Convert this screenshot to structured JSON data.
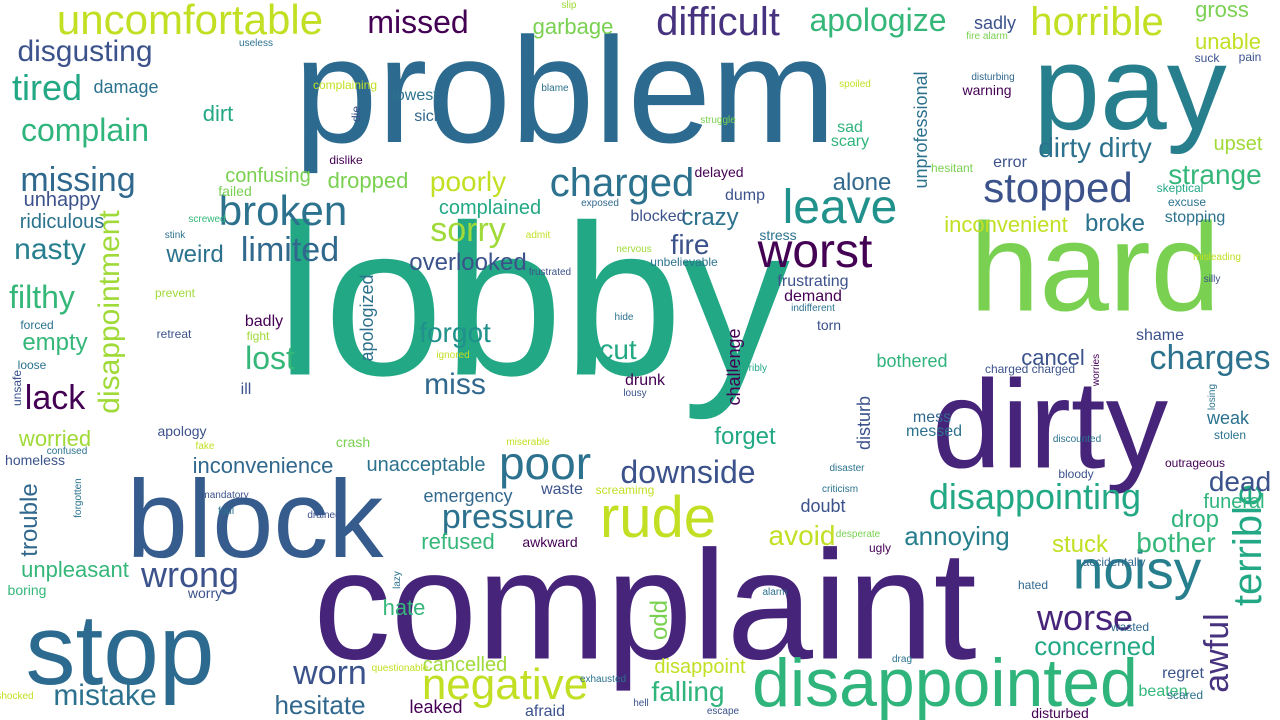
{
  "palette": [
    "#440154",
    "#46327e",
    "#365c8d",
    "#277f8e",
    "#1fa187",
    "#4ac16d",
    "#a0da39",
    "#c3e02a"
  ],
  "words": [
    {
      "text": "lobby",
      "color": "#22a884"
    },
    {
      "text": "problem",
      "color": "#2c6b8f"
    },
    {
      "text": "complaint",
      "color": "#46247a"
    },
    {
      "text": "hard",
      "color": "#7ad151"
    },
    {
      "text": "dirty",
      "color": "#46247a"
    },
    {
      "text": "pay",
      "color": "#277f8e"
    },
    {
      "text": "block",
      "color": "#365c8d"
    },
    {
      "text": "stop",
      "color": "#2c6b8f"
    },
    {
      "text": "disappointed",
      "color": "#2fb47c"
    },
    {
      "text": "noisy",
      "color": "#277f8e"
    },
    {
      "text": "uncomfortable",
      "color": "#c2df23"
    },
    {
      "text": "rude",
      "color": "#c2df23"
    },
    {
      "text": "worst",
      "color": "#440154"
    },
    {
      "text": "leave",
      "color": "#21918c"
    },
    {
      "text": "horrible",
      "color": "#c2df23"
    },
    {
      "text": "poor",
      "color": "#2c728e"
    },
    {
      "text": "broken",
      "color": "#2c728e"
    },
    {
      "text": "stopped",
      "color": "#3b528b"
    },
    {
      "text": "negative",
      "color": "#c2df23"
    },
    {
      "text": "charged",
      "color": "#2c728e"
    },
    {
      "text": "disappointing",
      "color": "#22a884"
    },
    {
      "text": "terrible",
      "color": "#22a884"
    },
    {
      "text": "difficult",
      "color": "#46327e"
    },
    {
      "text": "missed",
      "color": "#440154"
    },
    {
      "text": "apologize",
      "color": "#35b779"
    },
    {
      "text": "complain",
      "color": "#2fb47c"
    },
    {
      "text": "disgusting",
      "color": "#3b528b"
    },
    {
      "text": "tired",
      "color": "#22a884"
    },
    {
      "text": "missing",
      "color": "#31688e"
    },
    {
      "text": "limited",
      "color": "#31688e"
    },
    {
      "text": "sorry",
      "color": "#a0da39"
    },
    {
      "text": "charges",
      "color": "#2c728e"
    },
    {
      "text": "wrong",
      "color": "#3b528b"
    },
    {
      "text": "pressure",
      "color": "#2c728e"
    },
    {
      "text": "downside",
      "color": "#3b528b"
    },
    {
      "text": "worn",
      "color": "#3b528b"
    },
    {
      "text": "mistake",
      "color": "#2c728e"
    },
    {
      "text": "worse",
      "color": "#46247a"
    },
    {
      "text": "awful",
      "color": "#46327e"
    },
    {
      "text": "lost",
      "color": "#35b779"
    },
    {
      "text": "lack",
      "color": "#440154"
    },
    {
      "text": "filthy",
      "color": "#35b779"
    },
    {
      "text": "nasty",
      "color": "#277f8e"
    },
    {
      "text": "disappointment",
      "color": "#a0da39"
    },
    {
      "text": "dirty dirty",
      "color": "#2c728e"
    },
    {
      "text": "strange",
      "color": "#35b779"
    },
    {
      "text": "dead",
      "color": "#3b528b"
    },
    {
      "text": "miss",
      "color": "#31688e"
    },
    {
      "text": "forgot",
      "color": "#21918c"
    },
    {
      "text": "cut",
      "color": "#22a884"
    },
    {
      "text": "fire",
      "color": "#3b528b"
    },
    {
      "text": "poorly",
      "color": "#c2df23"
    },
    {
      "text": "crazy",
      "color": "#2c728e"
    },
    {
      "text": "alone",
      "color": "#31688e"
    },
    {
      "text": "bother",
      "color": "#35b779"
    },
    {
      "text": "stuck",
      "color": "#c2df23"
    },
    {
      "text": "drop",
      "color": "#2fb47c"
    },
    {
      "text": "falling",
      "color": "#2fb47c"
    },
    {
      "text": "hesitate",
      "color": "#31688e"
    },
    {
      "text": "concerned",
      "color": "#22a884"
    },
    {
      "text": "annoying",
      "color": "#277f8e"
    },
    {
      "text": "avoid",
      "color": "#c2df23"
    },
    {
      "text": "unpleasant",
      "color": "#35b779"
    },
    {
      "text": "trouble",
      "color": "#31688e"
    },
    {
      "text": "overlooked",
      "color": "#3b528b"
    },
    {
      "text": "weird",
      "color": "#2c728e"
    },
    {
      "text": "empty",
      "color": "#35b779"
    },
    {
      "text": "unable",
      "color": "#c2df23"
    },
    {
      "text": "gross",
      "color": "#7ad151"
    },
    {
      "text": "upset",
      "color": "#a0da39"
    },
    {
      "text": "broke",
      "color": "#2c728e"
    },
    {
      "text": "inconvenient",
      "color": "#c2df23"
    },
    {
      "text": "inconvenience",
      "color": "#31688e"
    },
    {
      "text": "unacceptable",
      "color": "#2c728e"
    },
    {
      "text": "refused",
      "color": "#35b779"
    },
    {
      "text": "forget",
      "color": "#22a884"
    },
    {
      "text": "cancel",
      "color": "#3b528b"
    },
    {
      "text": "garbage",
      "color": "#7ad151"
    },
    {
      "text": "dropped",
      "color": "#7ad151"
    },
    {
      "text": "confusing",
      "color": "#7ad151"
    },
    {
      "text": "complained",
      "color": "#22a884"
    },
    {
      "text": "ridiculous",
      "color": "#2c728e"
    },
    {
      "text": "unhappy",
      "color": "#3b528b"
    },
    {
      "text": "damage",
      "color": "#2c728e"
    },
    {
      "text": "dirt",
      "color": "#22a884"
    },
    {
      "text": "sick",
      "color": "#31688e"
    },
    {
      "text": "lowest",
      "color": "#2c728e"
    },
    {
      "text": "sad",
      "color": "#2fb47c"
    },
    {
      "text": "scary",
      "color": "#2fb47c"
    },
    {
      "text": "sadly",
      "color": "#3b528b"
    },
    {
      "text": "hate",
      "color": "#35b779"
    },
    {
      "text": "odd",
      "color": "#7ad151"
    },
    {
      "text": "cancelled",
      "color": "#a0da39"
    },
    {
      "text": "disappoint",
      "color": "#c2df23"
    },
    {
      "text": "waste",
      "color": "#3b528b"
    },
    {
      "text": "emergency",
      "color": "#31688e"
    },
    {
      "text": "doubt",
      "color": "#3b528b"
    },
    {
      "text": "drunk",
      "color": "#440154"
    },
    {
      "text": "bothered",
      "color": "#2fb47c"
    },
    {
      "text": "weak",
      "color": "#2c728e"
    },
    {
      "text": "funeral",
      "color": "#2fb47c"
    },
    {
      "text": "regret",
      "color": "#3b528b"
    },
    {
      "text": "beaten",
      "color": "#35b779"
    },
    {
      "text": "leaked",
      "color": "#440154"
    },
    {
      "text": "afraid",
      "color": "#3b528b"
    },
    {
      "text": "worried",
      "color": "#a0da39"
    },
    {
      "text": "shame",
      "color": "#3b528b"
    },
    {
      "text": "mess",
      "color": "#31688e"
    },
    {
      "text": "messed",
      "color": "#2c728e"
    },
    {
      "text": "badly",
      "color": "#440154"
    },
    {
      "text": "ill",
      "color": "#3b528b"
    },
    {
      "text": "apologized",
      "color": "#2c728e"
    },
    {
      "text": "unprofessional",
      "color": "#2c728e"
    },
    {
      "text": "challenge",
      "color": "#440154"
    },
    {
      "text": "disturb",
      "color": "#3b528b"
    },
    {
      "text": "dump",
      "color": "#3b528b"
    },
    {
      "text": "blocked",
      "color": "#3b528b"
    },
    {
      "text": "stopping",
      "color": "#2c728e"
    },
    {
      "text": "error",
      "color": "#3b528b"
    },
    {
      "text": "frustrating",
      "color": "#3b528b"
    },
    {
      "text": "demand",
      "color": "#440154"
    },
    {
      "text": "torn",
      "color": "#3b528b"
    },
    {
      "text": "stress",
      "color": "#2c728e"
    },
    {
      "text": "delayed",
      "color": "#440154"
    },
    {
      "text": "crash",
      "color": "#7ad151"
    },
    {
      "text": "apology",
      "color": "#3b528b"
    },
    {
      "text": "homeless",
      "color": "#3b528b"
    },
    {
      "text": "boring",
      "color": "#35b779"
    },
    {
      "text": "worry",
      "color": "#3b528b"
    },
    {
      "text": "awkward",
      "color": "#440154"
    },
    {
      "text": "ugly",
      "color": "#440154"
    },
    {
      "text": "accidentally",
      "color": "#31688e"
    },
    {
      "text": "hated",
      "color": "#31688e"
    },
    {
      "text": "wasted",
      "color": "#31688e"
    },
    {
      "text": "scared",
      "color": "#2c728e"
    },
    {
      "text": "stolen",
      "color": "#2c728e"
    },
    {
      "text": "outrageous",
      "color": "#440154"
    },
    {
      "text": "bloody",
      "color": "#3b528b"
    },
    {
      "text": "unsafe",
      "color": "#3b528b"
    },
    {
      "text": "loose",
      "color": "#2c728e"
    },
    {
      "text": "forced",
      "color": "#2c728e"
    },
    {
      "text": "failed",
      "color": "#7ad151"
    },
    {
      "text": "suck",
      "color": "#3b528b"
    },
    {
      "text": "pain",
      "color": "#3b528b"
    },
    {
      "text": "warning",
      "color": "#440154"
    },
    {
      "text": "hesitant",
      "color": "#7ad151"
    },
    {
      "text": "excuse",
      "color": "#2c728e"
    },
    {
      "text": "skeptical",
      "color": "#22a884"
    },
    {
      "text": "disturbed",
      "color": "#440154"
    },
    {
      "text": "charged charged",
      "color": "#3b528b"
    },
    {
      "text": "unbelievable",
      "color": "#2c728e"
    },
    {
      "text": "screamimg",
      "color": "#c2df23"
    },
    {
      "text": "complaining",
      "color": "#c2df23"
    },
    {
      "text": "die",
      "color": "#3b528b"
    },
    {
      "text": "blame",
      "color": "#2c728e"
    },
    {
      "text": "useless",
      "color": "#2c728e"
    },
    {
      "text": "slip",
      "color": "#a0da39"
    },
    {
      "text": "fire alarm",
      "color": "#7ad151"
    },
    {
      "text": "spoiled",
      "color": "#c2df23"
    },
    {
      "text": "struggle",
      "color": "#7ad151"
    },
    {
      "text": "disturbing",
      "color": "#31688e"
    },
    {
      "text": "dislike",
      "color": "#440154"
    },
    {
      "text": "screwed",
      "color": "#35b779"
    },
    {
      "text": "stink",
      "color": "#2c728e"
    },
    {
      "text": "prevent",
      "color": "#a0da39"
    },
    {
      "text": "retreat",
      "color": "#3b528b"
    },
    {
      "text": "fight",
      "color": "#a0da39"
    },
    {
      "text": "nervous",
      "color": "#a0da39"
    },
    {
      "text": "frustrated",
      "color": "#3b528b"
    },
    {
      "text": "hide",
      "color": "#2c728e"
    },
    {
      "text": "ignored",
      "color": "#c2df23"
    },
    {
      "text": "indifferent",
      "color": "#2c728e"
    },
    {
      "text": "misleading",
      "color": "#c2df23"
    },
    {
      "text": "silly",
      "color": "#3b528b"
    },
    {
      "text": "exposed",
      "color": "#31688e"
    },
    {
      "text": "admit",
      "color": "#c2df23"
    },
    {
      "text": "terribly",
      "color": "#22a884"
    },
    {
      "text": "lousy",
      "color": "#3b528b"
    },
    {
      "text": "fake",
      "color": "#c2df23"
    },
    {
      "text": "confused",
      "color": "#2c728e"
    },
    {
      "text": "miserable",
      "color": "#c2df23"
    },
    {
      "text": "mandatory",
      "color": "#3b528b"
    },
    {
      "text": "foul",
      "color": "#2c728e"
    },
    {
      "text": "drained",
      "color": "#3b528b"
    },
    {
      "text": "forgotten",
      "color": "#2c728e"
    },
    {
      "text": "disaster",
      "color": "#2c728e"
    },
    {
      "text": "criticism",
      "color": "#2c728e"
    },
    {
      "text": "desperate",
      "color": "#7ad151"
    },
    {
      "text": "lazy",
      "color": "#2c728e"
    },
    {
      "text": "alarm",
      "color": "#2c728e"
    },
    {
      "text": "exhausted",
      "color": "#2c728e"
    },
    {
      "text": "hell",
      "color": "#3b528b"
    },
    {
      "text": "escape",
      "color": "#3b528b"
    },
    {
      "text": "questionable",
      "color": "#c2df23"
    },
    {
      "text": "drag",
      "color": "#2c728e"
    },
    {
      "text": "worries",
      "color": "#440154"
    },
    {
      "text": "losing",
      "color": "#2c728e"
    },
    {
      "text": "discounted",
      "color": "#2c728e"
    },
    {
      "text": "shocked",
      "color": "#c2df23"
    },
    {
      "text": "leak",
      "color": "#7ad151"
    }
  ]
}
